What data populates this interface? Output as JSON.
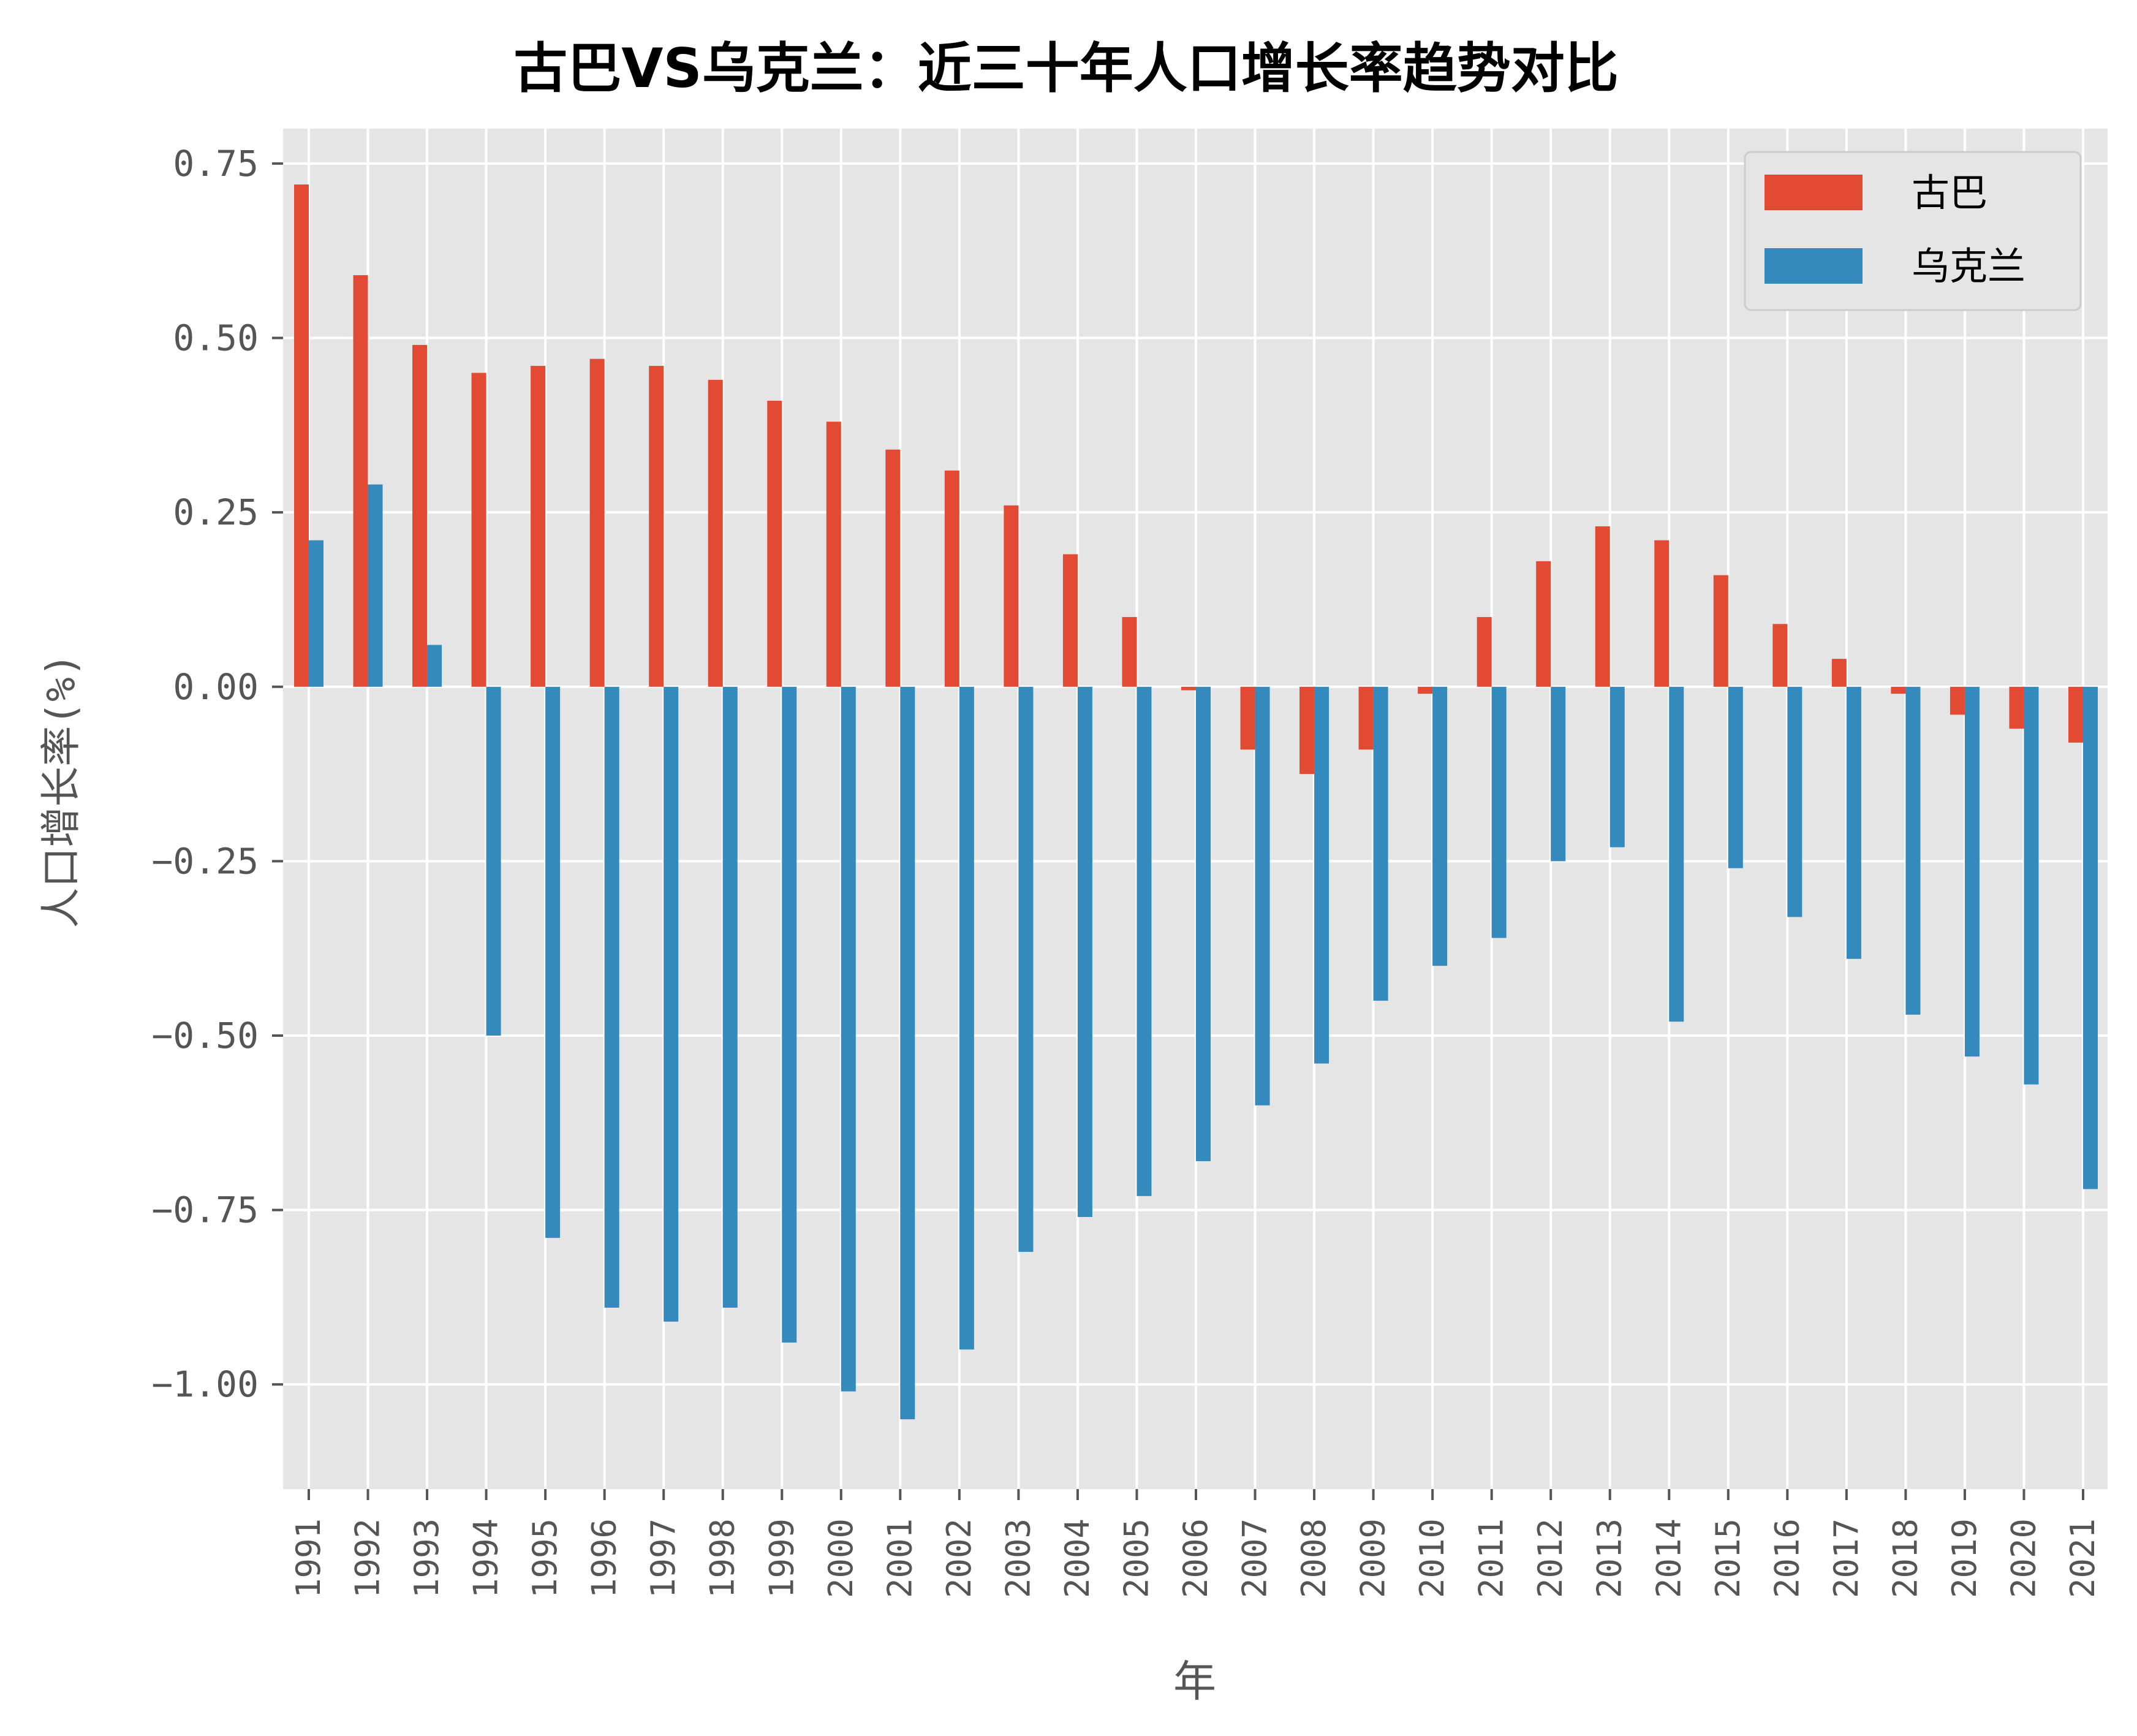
{
  "chart_data": {
    "type": "bar",
    "title": "古巴VS乌克兰：近三十年人口增长率趋势对比",
    "xlabel": "年",
    "ylabel": "人口增长率(%)",
    "ylim": [
      -1.15,
      0.8
    ],
    "yticks": [
      0.75,
      0.5,
      0.25,
      0.0,
      -0.25,
      -0.5,
      -0.75,
      -1.0
    ],
    "ytick_labels": [
      "0.75",
      "0.50",
      "0.25",
      "0.00",
      "−0.25",
      "−0.50",
      "−0.75",
      "−1.00"
    ],
    "grid": true,
    "legend_position": "top-right",
    "categories": [
      "1991",
      "1992",
      "1993",
      "1994",
      "1995",
      "1996",
      "1997",
      "1998",
      "1999",
      "2000",
      "2001",
      "2002",
      "2003",
      "2004",
      "2005",
      "2006",
      "2007",
      "2008",
      "2009",
      "2010",
      "2011",
      "2012",
      "2013",
      "2014",
      "2015",
      "2016",
      "2017",
      "2018",
      "2019",
      "2020",
      "2021"
    ],
    "series": [
      {
        "name": "古巴",
        "color": "#E24A33",
        "values": [
          0.72,
          0.59,
          0.49,
          0.45,
          0.46,
          0.47,
          0.46,
          0.44,
          0.41,
          0.38,
          0.34,
          0.31,
          0.26,
          0.19,
          0.1,
          -0.005,
          -0.09,
          -0.125,
          -0.09,
          -0.01,
          0.1,
          0.18,
          0.23,
          0.21,
          0.16,
          0.09,
          0.04,
          -0.01,
          -0.04,
          -0.06,
          -0.08
        ]
      },
      {
        "name": "乌克兰",
        "color": "#348ABD",
        "values": [
          0.21,
          0.29,
          0.06,
          -0.5,
          -0.79,
          -0.89,
          -0.91,
          -0.89,
          -0.94,
          -1.01,
          -1.05,
          -0.95,
          -0.81,
          -0.76,
          -0.73,
          -0.68,
          -0.6,
          -0.54,
          -0.45,
          -0.4,
          -0.36,
          -0.25,
          -0.23,
          -0.48,
          -0.26,
          -0.33,
          -0.39,
          -0.47,
          -0.53,
          -0.57,
          -0.72
        ]
      }
    ]
  },
  "colors": {
    "plot_background": "#E5E5E5",
    "grid": "#FFFFFF",
    "text": "#555555",
    "title": "#000000"
  }
}
